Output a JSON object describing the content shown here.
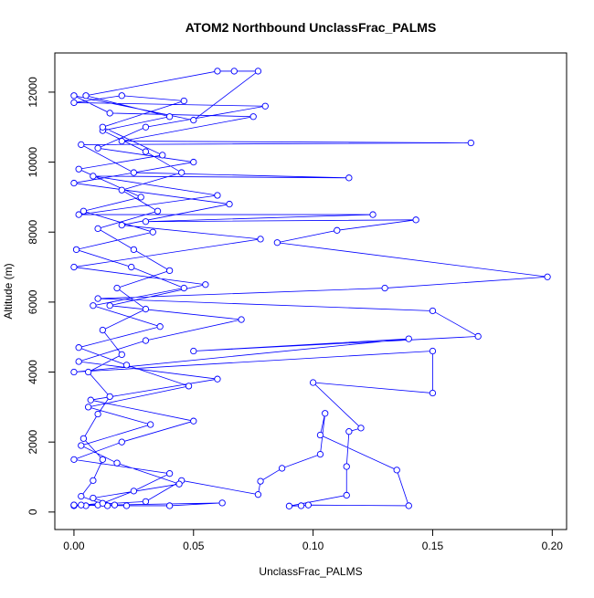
{
  "chart_data": {
    "type": "line",
    "title": "ATOM2 Northbound UnclassFrac_PALMS",
    "xlabel": "UnclassFrac_PALMS",
    "ylabel": "Altitude (m)",
    "color": "#0000ff",
    "markers": true,
    "x": [
      0.0,
      0.005,
      0.01,
      0.014,
      0.003,
      0.008,
      0.012,
      0.004,
      0.01,
      0.015,
      0.006,
      0.02,
      0.012,
      0.03,
      0.018,
      0.04,
      0.025,
      0.01,
      0.035,
      0.02,
      0.045,
      0.03,
      0.012,
      0.04,
      0.005,
      0.06,
      0.067,
      0.077,
      0.05,
      0.0,
      0.015,
      0.075,
      0.02,
      0.166,
      0.003,
      0.025,
      0.115,
      0.008,
      0.06,
      0.002,
      0.125,
      0.03,
      0.143,
      0.11,
      0.085,
      0.198,
      0.13,
      0.01,
      0.15,
      0.169,
      0.05,
      0.14,
      0.0,
      0.15,
      0.15,
      0.1,
      0.12,
      0.115,
      0.114,
      0.114,
      0.09,
      0.095,
      0.098,
      0.14,
      0.135,
      0.103,
      0.105,
      0.103,
      0.087,
      0.078,
      0.077,
      0.045,
      0.03,
      0.003,
      0.012,
      0.025,
      0.04,
      0.0,
      0.02,
      0.05,
      0.007,
      0.06,
      0.002,
      0.03,
      0.07,
      0.015,
      0.055,
      0.0,
      0.078,
      0.02,
      0.065,
      0.0,
      0.05,
      0.01,
      0.03,
      0.08,
      0.0,
      0.02,
      0.046,
      0.012,
      0.037,
      0.002,
      0.028,
      0.004,
      0.033,
      0.001,
      0.024,
      0.046,
      0.008,
      0.036,
      0.002,
      0.022,
      0.048,
      0.006,
      0.032,
      0.003,
      0.018,
      0.044,
      0.008,
      0.017,
      0.0,
      0.062,
      0.04,
      0.022,
      0.0
    ],
    "values": [
      200,
      180,
      200,
      180,
      450,
      900,
      1500,
      2100,
      2800,
      3300,
      4000,
      4500,
      5200,
      5800,
      6400,
      6900,
      7500,
      8100,
      8600,
      9200,
      9700,
      10300,
      10900,
      11300,
      11900,
      12600,
      12600,
      12600,
      11200,
      11900,
      11400,
      11300,
      10600,
      10550,
      10500,
      9700,
      9550,
      9600,
      9050,
      8500,
      8500,
      8300,
      8350,
      8050,
      7700,
      6720,
      6400,
      6100,
      5750,
      5020,
      4600,
      4950,
      4000,
      4600,
      3400,
      3700,
      2400,
      2300,
      1300,
      480,
      170,
      180,
      200,
      180,
      1200,
      2200,
      2820,
      1650,
      1250,
      880,
      500,
      900,
      300,
      200,
      250,
      600,
      1100,
      1500,
      2000,
      2600,
      3200,
      3800,
      4300,
      4900,
      5500,
      5900,
      6500,
      7000,
      7800,
      8200,
      8800,
      9400,
      10000,
      10400,
      11000,
      11600,
      11700,
      11900,
      11750,
      11000,
      10200,
      9800,
      9000,
      8600,
      8000,
      7500,
      7000,
      6400,
      5900,
      5300,
      4700,
      4200,
      3600,
      3000,
      2500,
      1900,
      1400,
      800,
      400,
      200,
      180,
      260,
      180,
      180,
      200
    ],
    "xlim": [
      -0.008,
      0.206
    ],
    "ylim": [
      -500,
      13120
    ],
    "xticks": [
      {
        "value": 0,
        "label": "0.00"
      },
      {
        "value": 0.05,
        "label": "0.05"
      },
      {
        "value": 0.1,
        "label": "0.10"
      },
      {
        "value": 0.15,
        "label": "0.15"
      },
      {
        "value": 0.2,
        "label": "0.20"
      }
    ],
    "yticks": [
      0,
      2000,
      4000,
      6000,
      8000,
      10000,
      12000
    ]
  }
}
